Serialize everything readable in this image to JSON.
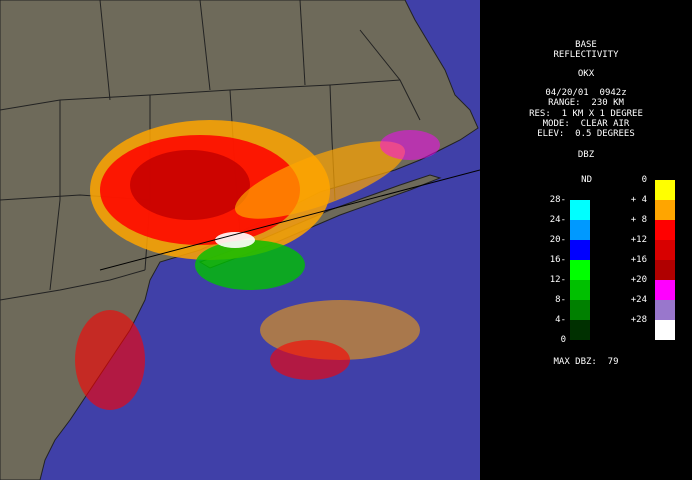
{
  "header": {
    "title": "BASE",
    "subtitle": "REFLECTIVITY",
    "station": "OKX",
    "datetime": "04/20/01  0942z",
    "range": "RANGE:  230 KM",
    "resolution": "RES:  1 KM X 1 DEGREE",
    "mode": "MODE:  CLEAR AIR",
    "elevation": "ELEV:  0.5 DEGREES"
  },
  "legend": {
    "title": "DBZ",
    "clear_air": {
      "labels": [
        "ND",
        "-28",
        "-24",
        "-20",
        "-16",
        "-12",
        "-8",
        "-4",
        "0"
      ],
      "colors": [
        "#00ffff",
        "#0099ff",
        "#0000ff",
        "#00ff00",
        "#00c000",
        "#008000",
        "#003000"
      ]
    },
    "precip": {
      "labels": [
        "0",
        "+ 4",
        "+ 8",
        "+12",
        "+16",
        "+20",
        "+24",
        "+28"
      ],
      "colors": [
        "#ffff00",
        "#ffa500",
        "#ff0000",
        "#d80000",
        "#b00000",
        "#ff00ff",
        "#9977cc",
        "#ffffff"
      ]
    }
  },
  "footer": {
    "max_dbz": "MAX DBZ:  79"
  }
}
